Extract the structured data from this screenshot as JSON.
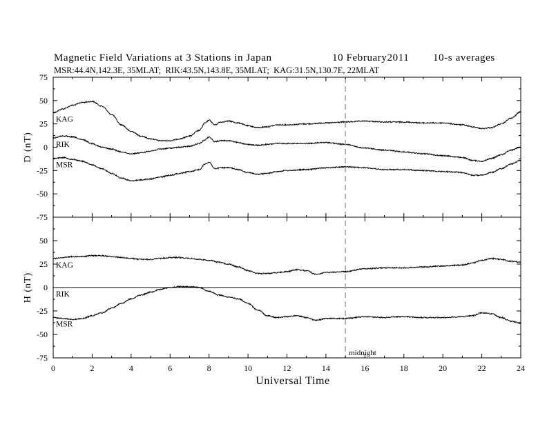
{
  "chart_data": {
    "type": "line",
    "title": "Magnetic Field Variations at 3 Stations in Japan",
    "date": "10 February2011",
    "averaging": "10-s averages",
    "subtitle": "MSR:44.4N,142.3E, 35MLAT;  RIK:43.5N,143.8E, 35MLAT;  KAG:31.5N,130.7E, 22MLAT",
    "xlabel": "Universal Time",
    "xlim": [
      0,
      24
    ],
    "xticks": [
      "0",
      "2",
      "4",
      "6",
      "8",
      "10",
      "12",
      "14",
      "16",
      "18",
      "20",
      "22",
      "24"
    ],
    "annotation": {
      "x": 15,
      "label": "midnight",
      "style": "dashed"
    },
    "panels": [
      {
        "ylabel": "D (nT)",
        "ylim": [
          -75,
          75
        ],
        "yticks": [
          "75",
          "50",
          "25",
          "0",
          "-25",
          "-50",
          "-75"
        ],
        "zero_line": false,
        "series": [
          {
            "name": "KAG",
            "x": [
              0,
              0.5,
              1,
              1.5,
              2,
              2.5,
              3,
              3.5,
              4,
              4.5,
              5,
              5.5,
              6,
              6.5,
              7,
              7.5,
              7.8,
              8,
              8.3,
              8.6,
              9,
              9.5,
              10,
              10.5,
              11,
              11.5,
              12,
              13,
              14,
              15,
              16,
              17,
              18,
              19,
              20,
              21,
              21.5,
              22,
              22.5,
              23,
              23.5,
              24
            ],
            "y": [
              37,
              41,
              45,
              48,
              49,
              44,
              35,
              24,
              17,
              12,
              9,
              7,
              7,
              9,
              12,
              18,
              26,
              29,
              24,
              27,
              28,
              26,
              23,
              21,
              22,
              24,
              24,
              25,
              26,
              27,
              28,
              27,
              27,
              26,
              26,
              24,
              22,
              20,
              21,
              25,
              31,
              38
            ]
          },
          {
            "name": "RIK",
            "x": [
              0,
              0.5,
              1,
              1.5,
              2,
              2.5,
              3,
              3.5,
              4,
              4.5,
              5,
              5.5,
              6,
              6.5,
              7,
              7.5,
              7.8,
              8,
              8.3,
              8.6,
              9,
              9.5,
              10,
              10.5,
              11,
              11.5,
              12,
              13,
              14,
              15,
              16,
              17,
              18,
              19,
              20,
              21,
              21.5,
              22,
              22.5,
              23,
              23.5,
              24
            ],
            "y": [
              10,
              12,
              11,
              8,
              4,
              0,
              -2,
              -5,
              -7,
              -6,
              -4,
              -2,
              -1,
              0,
              1,
              4,
              8,
              11,
              6,
              7,
              7,
              5,
              3,
              2,
              3,
              4,
              4,
              4,
              5,
              3,
              -1,
              -3,
              -5,
              -7,
              -9,
              -11,
              -14,
              -15,
              -12,
              -8,
              -3,
              0
            ]
          },
          {
            "name": "MSR",
            "x": [
              0,
              0.5,
              1,
              1.5,
              2,
              2.5,
              3,
              3.5,
              4,
              4.5,
              5,
              5.5,
              6,
              6.5,
              7,
              7.5,
              7.8,
              8,
              8.3,
              8.6,
              9,
              9.5,
              10,
              10.5,
              11,
              11.5,
              12,
              13,
              14,
              15,
              16,
              17,
              18,
              19,
              20,
              21,
              21.5,
              22,
              22.5,
              23,
              23.5,
              24
            ],
            "y": [
              -12,
              -11,
              -13,
              -15,
              -19,
              -23,
              -28,
              -33,
              -36,
              -35,
              -34,
              -32,
              -30,
              -28,
              -26,
              -24,
              -18,
              -16,
              -23,
              -22,
              -22,
              -24,
              -27,
              -29,
              -28,
              -26,
              -25,
              -24,
              -22,
              -21,
              -22,
              -24,
              -24,
              -25,
              -26,
              -27,
              -30,
              -30,
              -27,
              -23,
              -18,
              -14
            ]
          }
        ]
      },
      {
        "ylabel": "H (nT)",
        "ylim": [
          -75,
          75
        ],
        "yticks": [
          "75",
          "50",
          "25",
          "0",
          "-25",
          "-50",
          "-75"
        ],
        "zero_line": true,
        "series": [
          {
            "name": "KAG",
            "x": [
              0,
              0.5,
              1,
              1.5,
              2,
              2.5,
              3,
              3.5,
              4,
              4.5,
              5,
              5.5,
              6,
              6.5,
              7,
              7.5,
              8,
              8.5,
              9,
              9.5,
              10,
              10.5,
              11,
              11.5,
              12,
              12.5,
              13,
              13.5,
              14,
              15,
              16,
              17,
              18,
              19,
              20,
              21,
              21.5,
              22,
              22.5,
              23,
              23.5,
              24
            ],
            "y": [
              31,
              32,
              33,
              33,
              34,
              34,
              33,
              32,
              31,
              30,
              30,
              31,
              32,
              32,
              31,
              30,
              29,
              27,
              25,
              22,
              18,
              15,
              15,
              16,
              17,
              19,
              18,
              14,
              16,
              17,
              20,
              21,
              21,
              22,
              23,
              24,
              26,
              29,
              31,
              30,
              28,
              27
            ]
          },
          {
            "name": "RIK",
            "x": [
              0,
              24
            ],
            "y": [
              0,
              0
            ]
          },
          {
            "name": "MSR",
            "x": [
              0,
              0.5,
              1,
              1.5,
              2,
              2.5,
              3,
              3.5,
              4,
              4.5,
              5,
              5.5,
              6,
              6.5,
              7,
              7.5,
              8,
              8.5,
              9,
              9.5,
              10,
              10.5,
              11,
              11.5,
              12,
              12.5,
              13,
              13.5,
              14,
              15,
              16,
              17,
              18,
              19,
              20,
              21,
              21.5,
              22,
              22.5,
              23,
              23.5,
              24
            ],
            "y": [
              -32,
              -33,
              -34,
              -33,
              -30,
              -27,
              -22,
              -17,
              -12,
              -8,
              -5,
              -2,
              0,
              1,
              1,
              0,
              -4,
              -8,
              -10,
              -12,
              -17,
              -24,
              -30,
              -32,
              -31,
              -30,
              -32,
              -35,
              -33,
              -33,
              -31,
              -32,
              -31,
              -32,
              -32,
              -31,
              -30,
              -27,
              -28,
              -32,
              -36,
              -38
            ]
          }
        ]
      }
    ]
  }
}
